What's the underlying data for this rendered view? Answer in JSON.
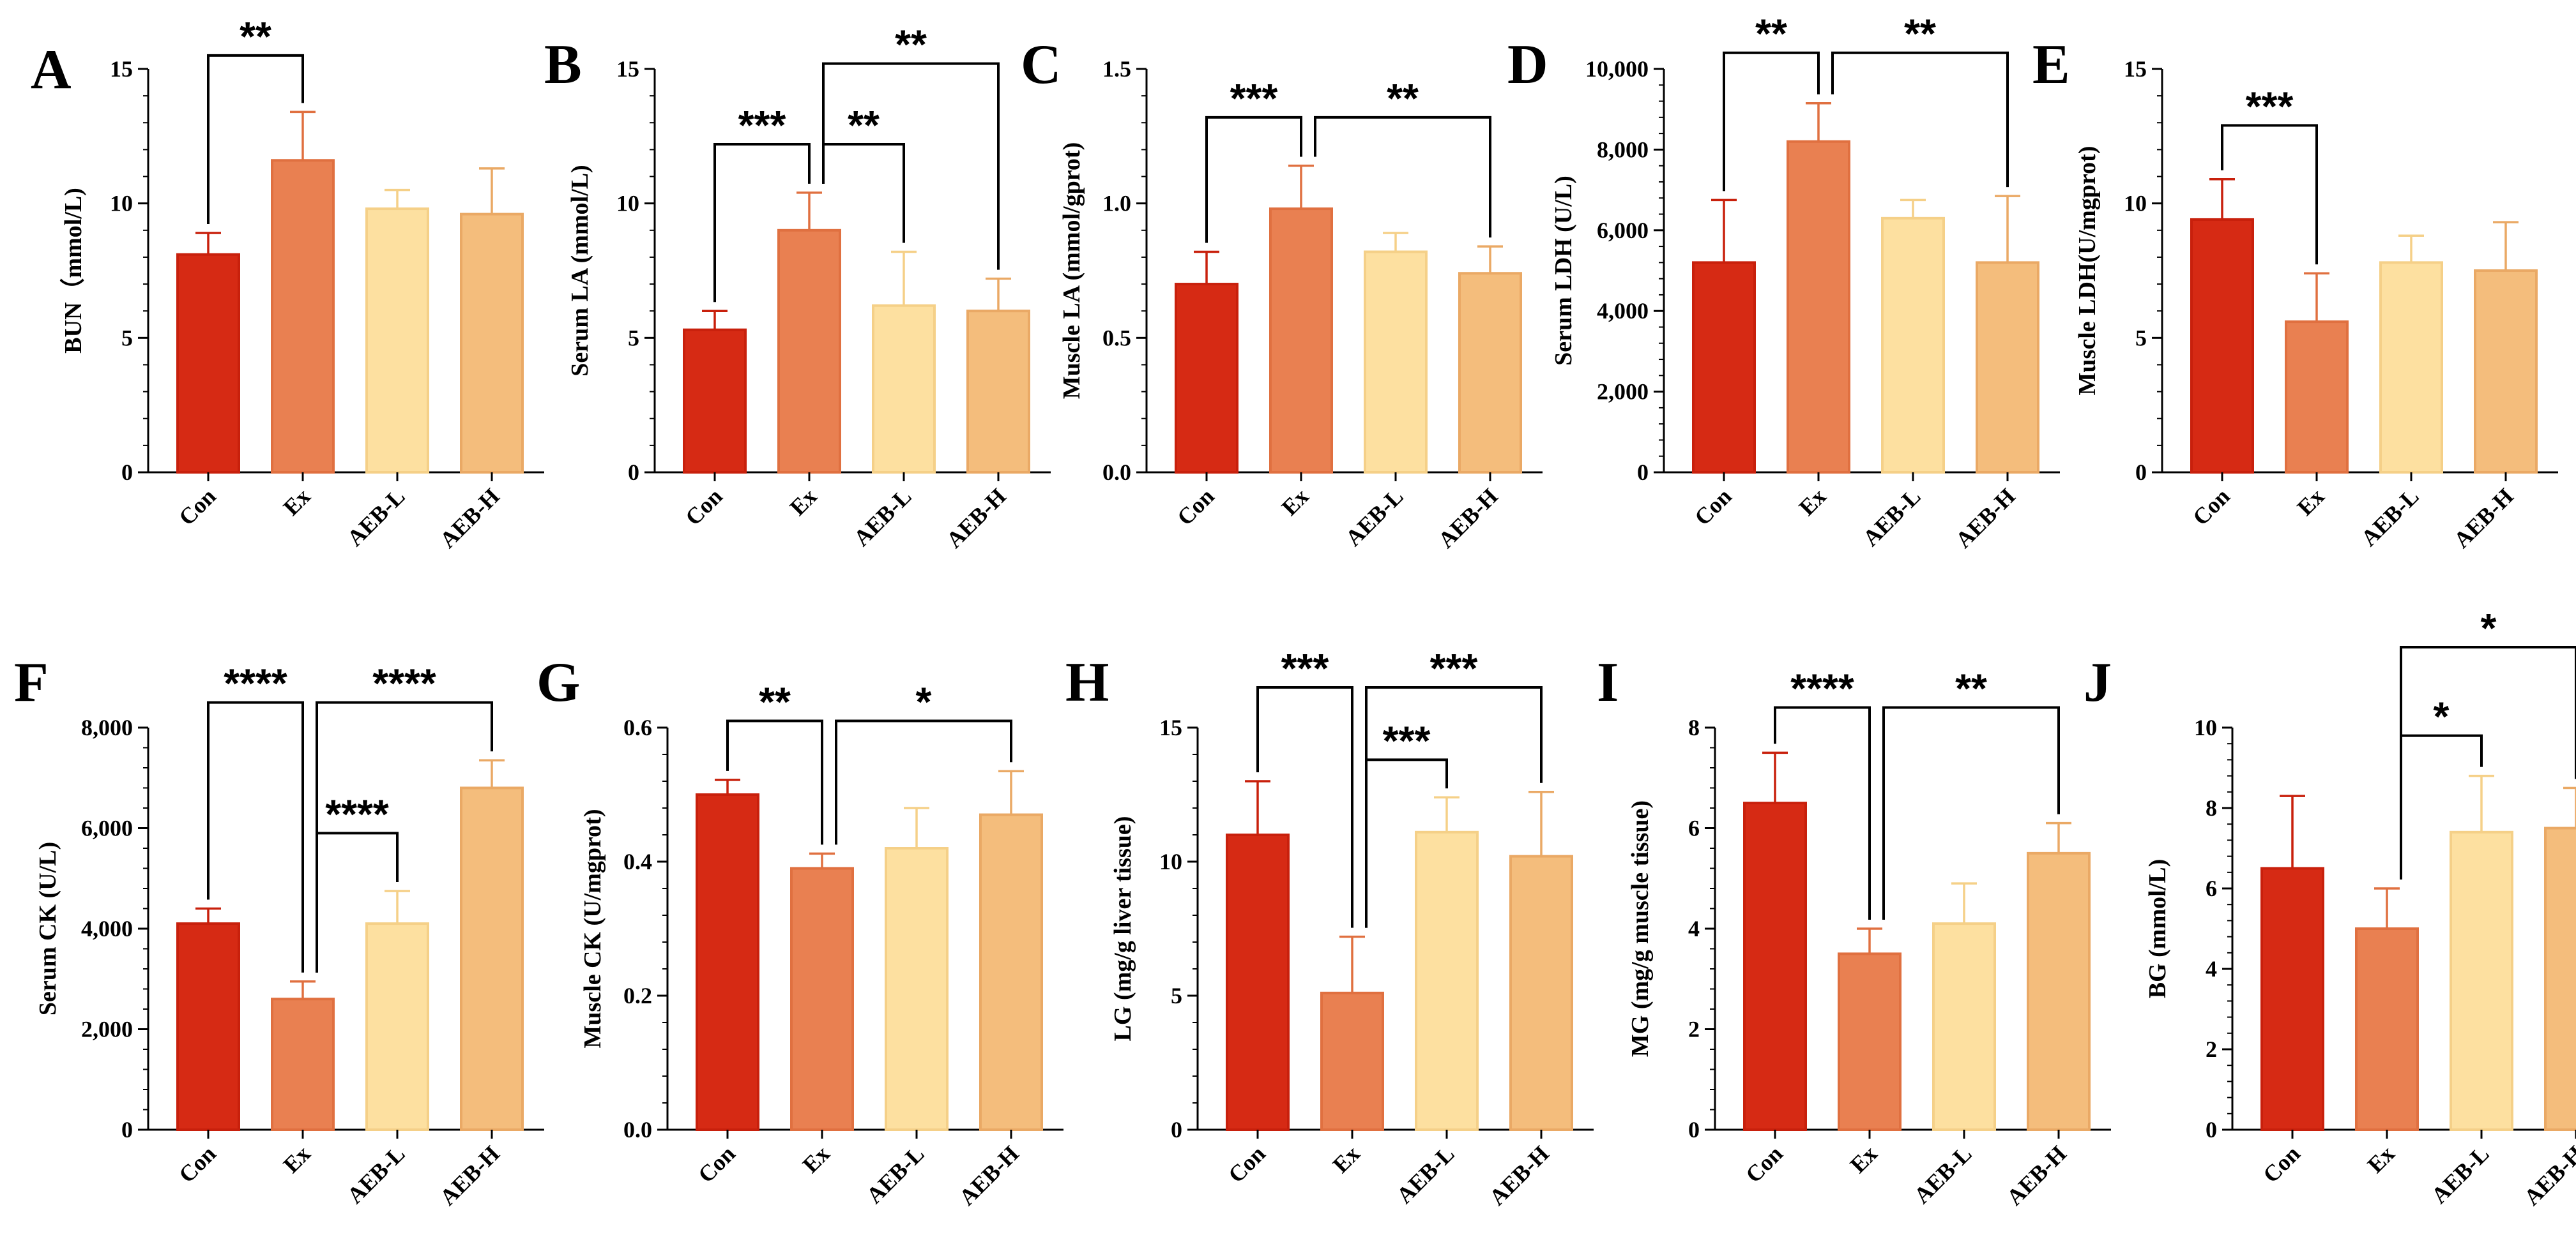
{
  "palette": {
    "Con": "#d62a14",
    "Ex": "#e98051",
    "AEB-L": "#fde0a0",
    "AEB-H": "#f4bd7c",
    "Con_edge": "#c8200c",
    "Ex_edge": "#e07040",
    "AEB-L_edge": "#f5d088",
    "AEB-H_edge": "#eaa965"
  },
  "chart_data": [
    {
      "id": "A",
      "letter": "A",
      "type": "bar",
      "ylabel": "BUN（mmol/L)",
      "ylim": [
        0,
        15
      ],
      "ticks": [
        0,
        5,
        10,
        15
      ],
      "tick_labels": [
        "0",
        "5",
        "10",
        "15"
      ],
      "categories": [
        "Con",
        "Ex",
        "AEB-L",
        "AEB-H"
      ],
      "values": [
        8.1,
        11.6,
        9.8,
        9.6
      ],
      "errors": [
        0.8,
        1.8,
        0.7,
        1.7
      ],
      "significance": [
        {
          "from": 0,
          "to": 1,
          "label": "**",
          "level": 15.5
        }
      ]
    },
    {
      "id": "B",
      "letter": "B",
      "type": "bar",
      "ylabel": "Serum LA (mmol/L)",
      "ylim": [
        0,
        15
      ],
      "ticks": [
        0,
        5,
        10,
        15
      ],
      "tick_labels": [
        "0",
        "5",
        "10",
        "15"
      ],
      "categories": [
        "Con",
        "Ex",
        "AEB-L",
        "AEB-H"
      ],
      "values": [
        5.3,
        9.0,
        6.2,
        6.0
      ],
      "errors": [
        0.7,
        1.4,
        2.0,
        1.2
      ],
      "significance": [
        {
          "from": 0,
          "to": 1,
          "label": "***",
          "level": 12.2
        },
        {
          "from": 1,
          "to": 2,
          "label": "**",
          "level": 12.2
        },
        {
          "from": 1,
          "to": 3,
          "label": "**",
          "level": 15.2
        }
      ]
    },
    {
      "id": "C",
      "letter": "C",
      "type": "bar",
      "ylabel": "Muscle LA (mmol/gprot)",
      "ylim": [
        0,
        1.5
      ],
      "ticks": [
        0,
        0.5,
        1.0,
        1.5
      ],
      "tick_labels": [
        "0.0",
        "0.5",
        "1.0",
        "1.5"
      ],
      "categories": [
        "Con",
        "Ex",
        "AEB-L",
        "AEB-H"
      ],
      "values": [
        0.7,
        0.98,
        0.82,
        0.74
      ],
      "errors": [
        0.12,
        0.16,
        0.07,
        0.1
      ],
      "significance": [
        {
          "from": 0,
          "to": 1,
          "label": "***",
          "level": 1.32
        },
        {
          "from": 1,
          "to": 3,
          "label": "**",
          "level": 1.32
        }
      ]
    },
    {
      "id": "D",
      "letter": "D",
      "type": "bar",
      "ylabel": "Serum LDH (U/L)",
      "ylim": [
        0,
        10000
      ],
      "ticks": [
        0,
        2000,
        4000,
        6000,
        8000,
        10000
      ],
      "tick_labels": [
        "0",
        "2,000",
        "4,000",
        "6,000",
        "8,000",
        "10,000"
      ],
      "categories": [
        "Con",
        "Ex",
        "AEB-L",
        "AEB-H"
      ],
      "values": [
        5200,
        8200,
        6300,
        5200
      ],
      "errors": [
        1550,
        950,
        450,
        1650
      ],
      "significance": [
        {
          "from": 0,
          "to": 1,
          "label": "**",
          "level": 10400
        },
        {
          "from": 1,
          "to": 3,
          "label": "**",
          "level": 10400
        }
      ]
    },
    {
      "id": "E",
      "letter": "E",
      "type": "bar",
      "ylabel": "Muscle LDH(U/mgprot)",
      "ylim": [
        0,
        15
      ],
      "ticks": [
        0,
        5,
        10,
        15
      ],
      "tick_labels": [
        "0",
        "5",
        "10",
        "15"
      ],
      "categories": [
        "Con",
        "Ex",
        "AEB-L",
        "AEB-H"
      ],
      "values": [
        9.4,
        5.6,
        7.8,
        7.5
      ],
      "errors": [
        1.5,
        1.8,
        1.0,
        1.8
      ],
      "significance": [
        {
          "from": 0,
          "to": 1,
          "label": "***",
          "level": 12.9
        }
      ]
    },
    {
      "id": "F",
      "letter": "F",
      "type": "bar",
      "ylabel": "Serum CK (U/L)",
      "ylim": [
        0,
        8000
      ],
      "ticks": [
        0,
        2000,
        4000,
        6000,
        8000
      ],
      "tick_labels": [
        "0",
        "2,000",
        "4,000",
        "6,000",
        "8,000"
      ],
      "categories": [
        "Con",
        "Ex",
        "AEB-L",
        "AEB-H"
      ],
      "values": [
        4100,
        2600,
        4100,
        6800
      ],
      "errors": [
        300,
        350,
        650,
        550
      ],
      "significance": [
        {
          "from": 0,
          "to": 1,
          "label": "****",
          "level": 8500
        },
        {
          "from": 1,
          "to": 3,
          "label": "****",
          "level": 8500
        },
        {
          "from": 1,
          "to": 2,
          "label": "****",
          "level": 5900
        }
      ]
    },
    {
      "id": "G",
      "letter": "G",
      "type": "bar",
      "ylabel": "Muscle CK (U/mgprot)",
      "ylim": [
        0,
        0.6
      ],
      "ticks": [
        0,
        0.2,
        0.4,
        0.6
      ],
      "tick_labels": [
        "0.0",
        "0.2",
        "0.4",
        "0.6"
      ],
      "categories": [
        "Con",
        "Ex",
        "AEB-L",
        "AEB-H"
      ],
      "values": [
        0.5,
        0.39,
        0.42,
        0.47
      ],
      "errors": [
        0.022,
        0.022,
        0.06,
        0.065
      ],
      "significance": [
        {
          "from": 0,
          "to": 1,
          "label": "**",
          "level": 0.61
        },
        {
          "from": 1,
          "to": 3,
          "label": "*",
          "level": 0.61
        }
      ]
    },
    {
      "id": "H",
      "letter": "H",
      "type": "bar",
      "ylabel": "LG (mg/g liver tissue)",
      "ylim": [
        0,
        15
      ],
      "ticks": [
        0,
        5,
        10,
        15
      ],
      "tick_labels": [
        "0",
        "5",
        "10",
        "15"
      ],
      "categories": [
        "Con",
        "Ex",
        "AEB-L",
        "AEB-H"
      ],
      "values": [
        11.0,
        5.1,
        11.1,
        10.2
      ],
      "errors": [
        2.0,
        2.1,
        1.3,
        2.4
      ],
      "significance": [
        {
          "from": 0,
          "to": 1,
          "label": "***",
          "level": 16.5
        },
        {
          "from": 1,
          "to": 3,
          "label": "***",
          "level": 16.5
        },
        {
          "from": 1,
          "to": 2,
          "label": "***",
          "level": 13.8
        }
      ]
    },
    {
      "id": "I",
      "letter": "I",
      "type": "bar",
      "ylabel": "MG (mg/g muscle tissue)",
      "ylim": [
        0,
        8
      ],
      "ticks": [
        0,
        2,
        4,
        6,
        8
      ],
      "tick_labels": [
        "0",
        "2",
        "4",
        "6",
        "8"
      ],
      "categories": [
        "Con",
        "Ex",
        "AEB-L",
        "AEB-H"
      ],
      "values": [
        6.5,
        3.5,
        4.1,
        5.5
      ],
      "errors": [
        1.0,
        0.5,
        0.8,
        0.6
      ],
      "significance": [
        {
          "from": 0,
          "to": 1,
          "label": "****",
          "level": 8.4
        },
        {
          "from": 1,
          "to": 3,
          "label": "**",
          "level": 8.4
        }
      ]
    },
    {
      "id": "J",
      "letter": "J",
      "type": "bar",
      "ylabel": "BG (mmol/L)",
      "ylim": [
        0,
        10
      ],
      "ticks": [
        0,
        2,
        4,
        6,
        8,
        10
      ],
      "tick_labels": [
        "0",
        "2",
        "4",
        "6",
        "8",
        "10"
      ],
      "categories": [
        "Con",
        "Ex",
        "AEB-L",
        "AEB-H"
      ],
      "values": [
        6.5,
        5.0,
        7.4,
        7.5
      ],
      "errors": [
        1.8,
        1.0,
        1.4,
        1.0
      ],
      "significance": [
        {
          "from": 1,
          "to": 3,
          "label": "*",
          "level": 12.0
        },
        {
          "from": 1,
          "to": 2,
          "label": "*",
          "level": 9.8
        }
      ]
    }
  ]
}
